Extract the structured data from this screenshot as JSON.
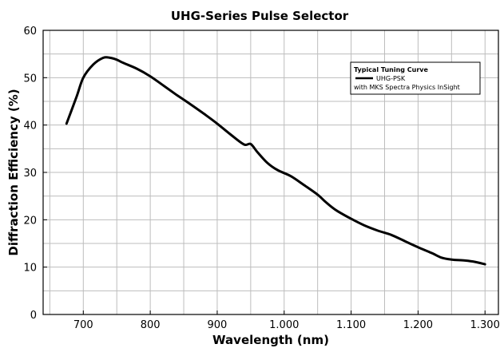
{
  "chart_data": {
    "type": "line",
    "title": "UHG-Series Pulse Selector",
    "xlabel": "Wavelength (nm)",
    "ylabel": "Diffraction Efficiency (%)",
    "xlim": [
      640,
      1320
    ],
    "ylim": [
      0,
      60
    ],
    "xticks": [
      {
        "value": 700,
        "label": "700"
      },
      {
        "value": 800,
        "label": "800"
      },
      {
        "value": 900,
        "label": "900"
      },
      {
        "value": 1000,
        "label": "1.000"
      },
      {
        "value": 1100,
        "label": "1.100"
      },
      {
        "value": 1200,
        "label": "1.200"
      },
      {
        "value": 1300,
        "label": "1.300"
      }
    ],
    "yticks": [
      {
        "value": 0,
        "label": "0"
      },
      {
        "value": 10,
        "label": "10"
      },
      {
        "value": 20,
        "label": "20"
      },
      {
        "value": 30,
        "label": "30"
      },
      {
        "value": 40,
        "label": "40"
      },
      {
        "value": 50,
        "label": "50"
      },
      {
        "value": 60,
        "label": "60"
      }
    ],
    "grid": true,
    "legend": {
      "placement": "top-right",
      "title": "Typical Tuning Curve",
      "entries": [
        "UHG-PSK",
        "with MKS Spectra Physics InSight"
      ]
    },
    "series": [
      {
        "name": "UHG-PSK",
        "color": "#000000",
        "x": [
          675,
          690,
          700,
          715,
          730,
          740,
          750,
          760,
          780,
          800,
          820,
          840,
          860,
          880,
          900,
          920,
          940,
          950,
          960,
          975,
          990,
          1010,
          1030,
          1050,
          1060,
          1070,
          1080,
          1100,
          1120,
          1140,
          1160,
          1180,
          1200,
          1220,
          1235,
          1250,
          1270,
          1285,
          1300
        ],
        "y": [
          40.3,
          46.0,
          50.0,
          52.8,
          54.2,
          54.2,
          53.8,
          53.1,
          51.9,
          50.3,
          48.3,
          46.3,
          44.4,
          42.4,
          40.3,
          38.0,
          35.9,
          36.0,
          34.3,
          32.0,
          30.5,
          29.2,
          27.3,
          25.3,
          24.0,
          22.8,
          21.8,
          20.2,
          18.8,
          17.7,
          16.8,
          15.5,
          14.2,
          13.0,
          12.0,
          11.6,
          11.4,
          11.1,
          10.6
        ]
      }
    ]
  }
}
